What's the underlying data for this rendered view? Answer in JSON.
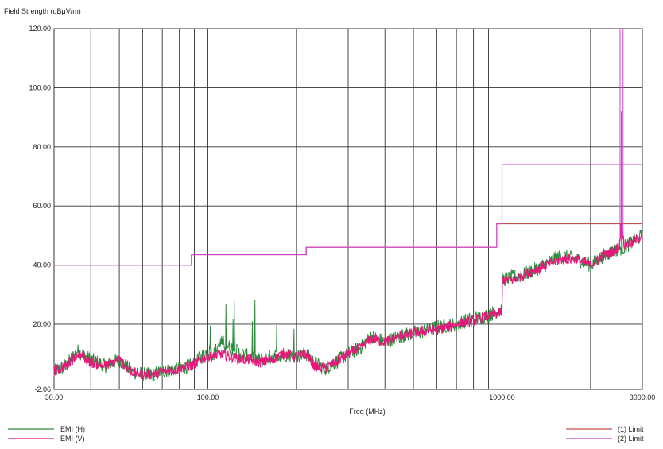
{
  "chart_data": {
    "type": "line",
    "ylabel": "Field Strength (dBμV/m)",
    "xlabel": "Freq (MHz)",
    "x_scale": "log",
    "xlim": [
      30,
      3000
    ],
    "ylim": [
      -2.06,
      120
    ],
    "grid": true,
    "y_ticks": [
      -2.06,
      20,
      40,
      60,
      80,
      100,
      120
    ],
    "y_tick_labels": [
      "-2.06",
      "20.00",
      "40.00",
      "60.00",
      "80.00",
      "100.00",
      "120.00"
    ],
    "x_ticks": [
      30,
      100,
      1000,
      3000
    ],
    "x_tick_labels": [
      "30.00",
      "100.00",
      "1000.00",
      "3000.00"
    ],
    "colors": {
      "emi_h": "#2e8b3e",
      "emi_v": "#e8157a",
      "limit1": "#c0504d",
      "limit2": "#cc44cc",
      "grid": "#333333"
    },
    "series": [
      {
        "name": "EMI (H)",
        "x": [
          30,
          33,
          36,
          40,
          45,
          50,
          55,
          60,
          65,
          70,
          80,
          88,
          95,
          100,
          105,
          110,
          120,
          130,
          140,
          150,
          165,
          180,
          200,
          216,
          230,
          250,
          270,
          300,
          330,
          360,
          400,
          450,
          500,
          560,
          600,
          700,
          800,
          900,
          1000,
          1000.1,
          1100,
          1200,
          1400,
          1500,
          1600,
          1800,
          2000,
          2200,
          2400,
          2600,
          2700,
          2800,
          3000
        ],
        "y": [
          4,
          6,
          11,
          8,
          6,
          8,
          4,
          3,
          3,
          4,
          5,
          6,
          9,
          11,
          10,
          14,
          12,
          10,
          9,
          8,
          9,
          10,
          9,
          10,
          7,
          5,
          7,
          10,
          12,
          16,
          14,
          16,
          17,
          18,
          19,
          20,
          22,
          23,
          25,
          35,
          36,
          37,
          40,
          42,
          43,
          42,
          40,
          43,
          45,
          46,
          47,
          48,
          50
        ]
      },
      {
        "name": "EMI (V)",
        "x": [
          30,
          33,
          36,
          40,
          45,
          50,
          55,
          60,
          65,
          70,
          80,
          88,
          95,
          100,
          105,
          110,
          120,
          130,
          140,
          150,
          165,
          180,
          200,
          216,
          230,
          250,
          270,
          300,
          330,
          360,
          400,
          450,
          500,
          560,
          600,
          700,
          800,
          900,
          1000,
          1000.1,
          1100,
          1200,
          1400,
          1500,
          1600,
          1800,
          2000,
          2200,
          2400,
          2500,
          2550,
          2600,
          2700,
          2800,
          3000
        ],
        "y": [
          4,
          6,
          10,
          7,
          6,
          8,
          4,
          3,
          3,
          4,
          5,
          6,
          8,
          9,
          9,
          10,
          9,
          8,
          8,
          7,
          8,
          10,
          9,
          10,
          6,
          5,
          7,
          10,
          12,
          15,
          14,
          16,
          17,
          18,
          18,
          20,
          21,
          23,
          24,
          35,
          35,
          37,
          40,
          41,
          42,
          42,
          40,
          43,
          45,
          46,
          55,
          47,
          47,
          48,
          50
        ]
      },
      {
        "name": "(1) Limit",
        "x": [
          30,
          88,
          88,
          216,
          216,
          960,
          960,
          3000
        ],
        "y": [
          40,
          40,
          43.5,
          43.5,
          46,
          46,
          54,
          54
        ]
      },
      {
        "name": "(2) Limit",
        "x": [
          30,
          88,
          88,
          216,
          216,
          960,
          960,
          1000,
          1000,
          3000
        ],
        "y": [
          40,
          40,
          43.5,
          43.5,
          46,
          46,
          54,
          54,
          74,
          74
        ]
      }
    ],
    "legend": {
      "left": [
        "EMI (H)",
        "EMI (V)"
      ],
      "right": [
        "(1) Limit",
        "(2) Limit"
      ],
      "placement": "bottom"
    }
  }
}
